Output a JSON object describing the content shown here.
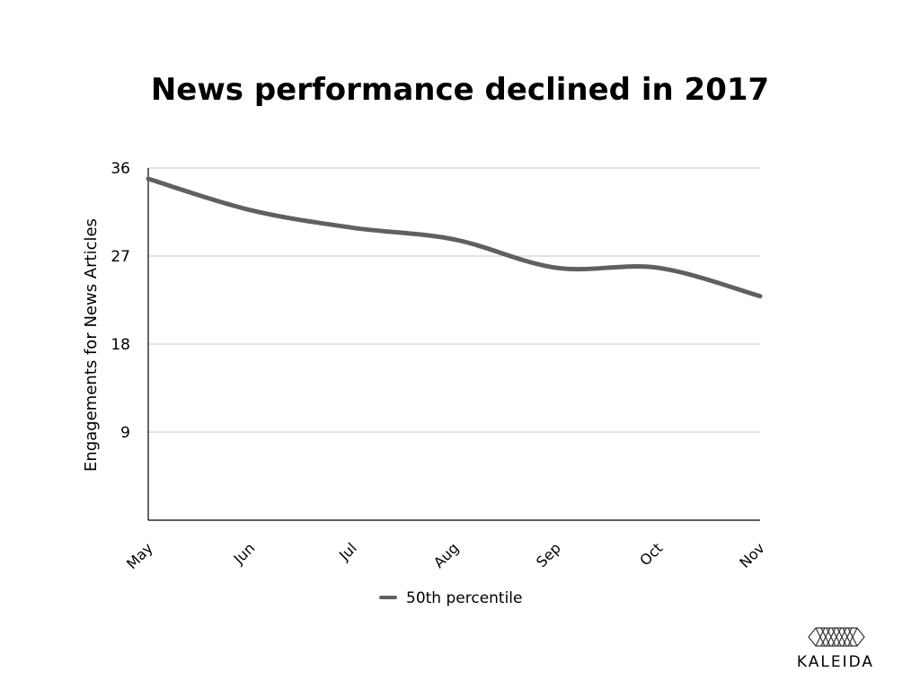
{
  "chart_data": {
    "type": "line",
    "title": "News performance declined in 2017",
    "xlabel": "",
    "ylabel": "Engagements for News Articles",
    "categories": [
      "May",
      "Jun",
      "Jul",
      "Aug",
      "Sep",
      "Oct",
      "Nov"
    ],
    "series": [
      {
        "name": "50th percentile",
        "values": [
          34.9,
          31.7,
          29.9,
          28.7,
          25.8,
          25.8,
          22.9
        ],
        "color": "#606060"
      }
    ],
    "ylim": [
      0,
      36
    ],
    "yticks": [
      9,
      18,
      27,
      36
    ],
    "grid": true,
    "legend": "bottom-center",
    "smooth": true
  },
  "brand": {
    "name": "KALEIDA",
    "icon": "kaleida-logo-icon"
  },
  "colors": {
    "line": "#606060",
    "grid": "#c8c8c8",
    "axis": "#000000"
  }
}
